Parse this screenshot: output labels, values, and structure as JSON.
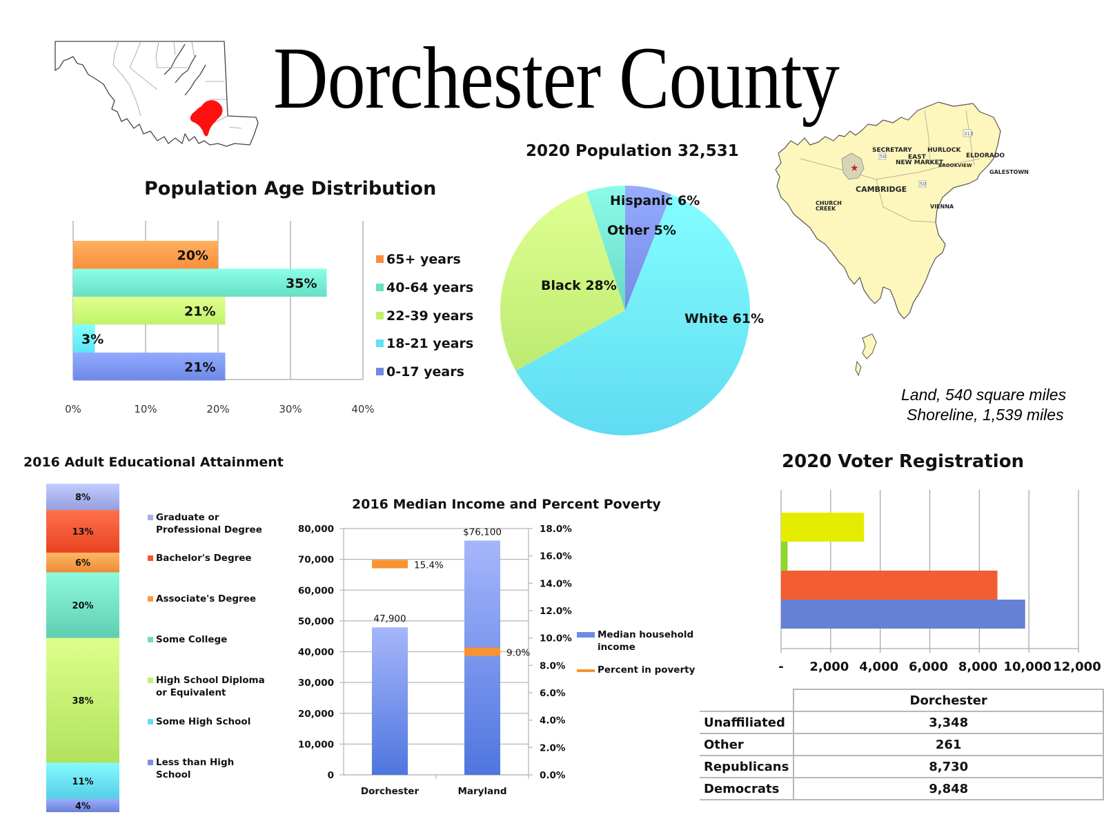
{
  "page": {
    "title": "Dorchester County",
    "locator_map": {
      "state": "Maryland",
      "highlight_color": "#ff1010"
    },
    "county_map": {
      "fill_color": "#fdf7bd",
      "places": [
        "SECRETARY",
        "HURLOCK",
        "EAST",
        "NEW MARKET",
        "ELDORADO",
        "BROOKVIEW",
        "GALESTOWN",
        "CAMBRIDGE",
        "CHURCH",
        "CREEK",
        "VIENNA"
      ],
      "route_shields": [
        "50",
        "50",
        "313"
      ],
      "caption_line1": "Land, 540 square miles",
      "caption_line2": "Shoreline, 1,539 miles"
    }
  },
  "chart_data": [
    {
      "id": "age",
      "type": "bar",
      "orientation": "horizontal",
      "title": "Population Age Distribution",
      "categories": [
        "65+ years",
        "40-64 years",
        "22-39 years",
        "18-21 years",
        "0-17 years"
      ],
      "values": [
        20,
        35,
        21,
        3,
        21
      ],
      "labels": [
        "20%",
        "35%",
        "21%",
        "3%",
        "21%"
      ],
      "colors": [
        "#f98e3d",
        "#67e0c4",
        "#bff26a",
        "#5ee4f6",
        "#6f88e6"
      ],
      "xlim": [
        0,
        40
      ],
      "xticks": [
        "0%",
        "10%",
        "20%",
        "30%",
        "40%"
      ],
      "grid": true,
      "legend": "right"
    },
    {
      "id": "population",
      "type": "pie",
      "title": "2020 Population 32,531",
      "slices": [
        {
          "name": "Hispanic",
          "value": 6,
          "label": "Hispanic 6%",
          "color": "#7d93ee"
        },
        {
          "name": "White",
          "value": 61,
          "label": "White 61%",
          "color": "#6ae5fb"
        },
        {
          "name": "Black",
          "value": 28,
          "label": "Black 28%",
          "color": "#c6f57a"
        },
        {
          "name": "Other",
          "value": 5,
          "label": "Other 5%",
          "color": "#72e3cf"
        }
      ],
      "start": "12 o'clock",
      "direction": "clockwise"
    },
    {
      "id": "education",
      "type": "bar",
      "orientation": "stacked-vertical",
      "title": "2016 Adult Educational Attainment",
      "segments_top_to_bottom": [
        {
          "name": "Graduate or Professional Degree",
          "legend_lines": [
            "Graduate or",
            "Professional Degree"
          ],
          "value": 8,
          "label": "8%",
          "color": "#a3aeee"
        },
        {
          "name": "Bachelor's Degree",
          "legend_lines": [
            "Bachelor's Degree"
          ],
          "value": 13,
          "label": "13%",
          "color": "#f8522f"
        },
        {
          "name": "Associate's Degree",
          "legend_lines": [
            "Associate's Degree"
          ],
          "value": 6,
          "label": "6%",
          "color": "#fb9a45"
        },
        {
          "name": "Some College",
          "legend_lines": [
            "Some College"
          ],
          "value": 20,
          "label": "20%",
          "color": "#6fdcc0"
        },
        {
          "name": "High School Diploma or Equivalent",
          "legend_lines": [
            "High School Diploma",
            "or Equivalent"
          ],
          "value": 38,
          "label": "38%",
          "color": "#bff16c"
        },
        {
          "name": "Some High School",
          "legend_lines": [
            "Some High School"
          ],
          "value": 11,
          "label": "11%",
          "color": "#66dcf5"
        },
        {
          "name": "Less than High School",
          "legend_lines": [
            "Less than High",
            "School"
          ],
          "value": 4,
          "label": "4%",
          "color": "#7b8fe6"
        }
      ],
      "legend": "right"
    },
    {
      "id": "income",
      "type": "bar",
      "title": "2016 Median Income and Percent Poverty",
      "categories": [
        "Dorchester",
        "Maryland"
      ],
      "series": [
        {
          "name": "Median household income",
          "legend_lines": [
            "Median household",
            "income"
          ],
          "axis": "left",
          "values": [
            47900,
            76100
          ],
          "labels": [
            "47,900",
            "$76,100"
          ],
          "color": "#6f8ce8"
        },
        {
          "name": "Percent in poverty",
          "legend_lines": [
            "Percent in poverty"
          ],
          "axis": "right",
          "values": [
            15.4,
            9.0
          ],
          "labels": [
            "15.4%",
            "9.0%"
          ],
          "color": "#f9932f"
        }
      ],
      "ylim_left": [
        0,
        80000
      ],
      "yticks_left": [
        "0",
        "10,000",
        "20,000",
        "30,000",
        "40,000",
        "50,000",
        "60,000",
        "70,000",
        "80,000"
      ],
      "ylim_right": [
        0,
        18
      ],
      "yticks_right": [
        "0.0%",
        "2.0%",
        "4.0%",
        "6.0%",
        "8.0%",
        "10.0%",
        "12.0%",
        "14.0%",
        "16.0%",
        "18.0%"
      ],
      "grid": true,
      "legend": "right"
    },
    {
      "id": "voters",
      "type": "bar",
      "orientation": "horizontal",
      "title": "2020 Voter Registration",
      "column_header": "Dorchester",
      "categories": [
        "Unaffiliated",
        "Other",
        "Republicans",
        "Democrats"
      ],
      "values": [
        3348,
        261,
        8730,
        9848
      ],
      "labels": [
        "3,348",
        "261",
        "8,730",
        "9,848"
      ],
      "colors": [
        "#e6ec00",
        "#8ed826",
        "#f45c32",
        "#6580d4"
      ],
      "xlim": [
        0,
        12000
      ],
      "xticks": [
        "-",
        "2,000",
        "4,000",
        "6,000",
        "8,000",
        "10,000",
        "12,000"
      ],
      "grid": true,
      "legend": "table"
    }
  ]
}
